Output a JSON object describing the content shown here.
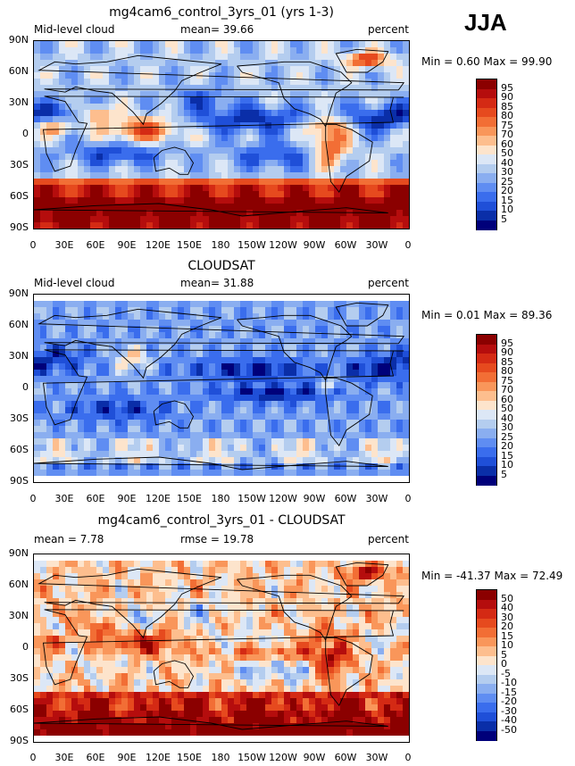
{
  "season": "JJA",
  "panels": [
    {
      "title": "mg4cam6_control_3yrs_01 (yrs 1-3)",
      "left_text": "Mid-level cloud",
      "center_text": "mean=  39.66",
      "right_text": "percent",
      "minmax": "Min =   0.60 Max =  99.90",
      "pattern": "model",
      "colorbar": {
        "labels": [
          "95",
          "90",
          "85",
          "80",
          "75",
          "70",
          "60",
          "50",
          "40",
          "30",
          "25",
          "20",
          "15",
          "10",
          "5"
        ]
      }
    },
    {
      "title": "CLOUDSAT",
      "left_text": "Mid-level cloud",
      "center_text": "mean=  31.88",
      "right_text": "percent",
      "minmax": "Min =   0.01 Max =  89.36",
      "pattern": "obs",
      "colorbar": {
        "labels": [
          "95",
          "90",
          "85",
          "80",
          "75",
          "70",
          "60",
          "50",
          "40",
          "30",
          "25",
          "20",
          "15",
          "10",
          "5"
        ]
      }
    },
    {
      "title": "mg4cam6_control_3yrs_01 - CLOUDSAT",
      "left_text": "mean =   7.78",
      "center_text": "rmse =  19.78",
      "right_text": "percent",
      "minmax": "Min = -41.37 Max =  72.49",
      "pattern": "diff",
      "colorbar": {
        "labels": [
          "50",
          "40",
          "30",
          "20",
          "15",
          "10",
          "5",
          "0",
          "-5",
          "-10",
          "-15",
          "-20",
          "-30",
          "-40",
          "-50"
        ]
      }
    }
  ],
  "axes": {
    "lat_labels": [
      "90N",
      "60N",
      "30N",
      "0",
      "30S",
      "60S",
      "90S"
    ],
    "lon_labels": [
      "0",
      "30E",
      "60E",
      "90E",
      "120E",
      "150E",
      "180",
      "150W",
      "120W",
      "90W",
      "60W",
      "30W",
      "0"
    ]
  },
  "colors": {
    "seq": [
      "#8b0000",
      "#b50d0d",
      "#d42a14",
      "#e64a1e",
      "#f26e35",
      "#f9965a",
      "#fdbe8e",
      "#fde4cc",
      "#dce7f6",
      "#b4cdef",
      "#8aaef0",
      "#5f8df2",
      "#3a6ded",
      "#1f4fd8",
      "#0a2ea8",
      "#00007a"
    ]
  }
}
